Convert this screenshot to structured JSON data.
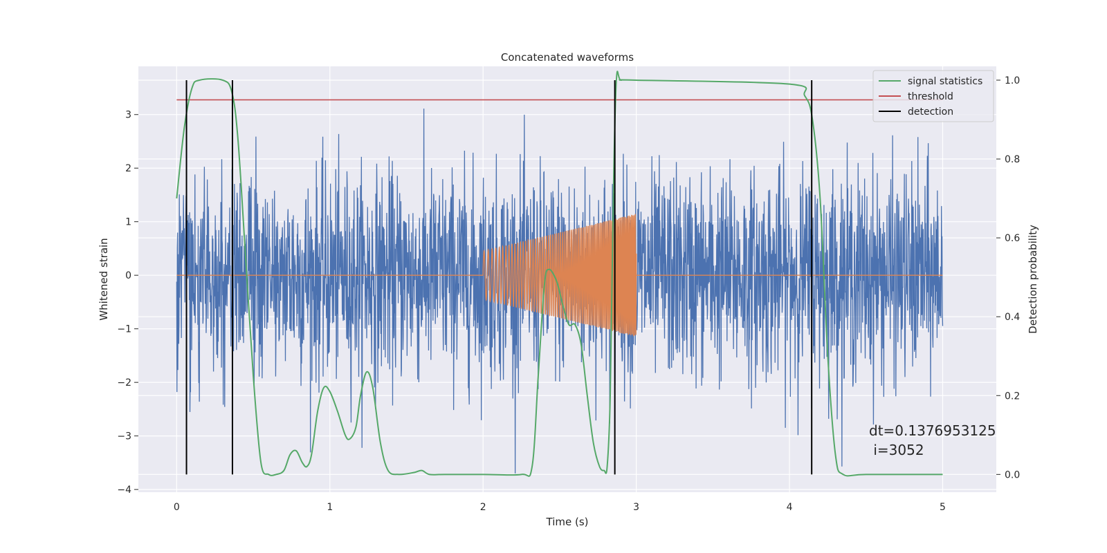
{
  "chart_data": {
    "type": "line",
    "title": "Concatenated waveforms",
    "xlabel": "Time (s)",
    "ylabel": "Whitened strain",
    "y2label": "Detection probability",
    "xlim": [
      -0.25,
      5.35
    ],
    "ylim": [
      -4.05,
      3.9
    ],
    "y2lim": [
      -0.045,
      1.035
    ],
    "xticks": [
      0,
      1,
      2,
      3,
      4,
      5
    ],
    "xtick_labels": [
      "0",
      "1",
      "2",
      "3",
      "4",
      "5"
    ],
    "yticks": [
      -4,
      -3,
      -2,
      -1,
      0,
      1,
      2,
      3
    ],
    "ytick_labels": [
      "−4",
      "−3",
      "−2",
      "−1",
      "0",
      "1",
      "2",
      "3"
    ],
    "y2ticks": [
      0.0,
      0.2,
      0.4,
      0.6,
      0.8,
      1.0
    ],
    "y2tick_labels": [
      "0.0",
      "0.2",
      "0.4",
      "0.6",
      "0.8",
      "1.0"
    ],
    "grid": true,
    "legend_position": "top-right",
    "colors": {
      "background": "#eaeaf2",
      "grid": "#ffffff",
      "strain": "#4c72b0",
      "template": "#dd8452",
      "signal_statistics": "#55a868",
      "threshold": "#c44e52",
      "detection": "#000000"
    },
    "series": [
      {
        "name": "",
        "axis": "left",
        "description_kind": "noise",
        "x_range": [
          0,
          5
        ],
        "approx_band": [
          -1.0,
          1.0
        ],
        "peak_range": [
          -3.7,
          3.55
        ]
      },
      {
        "name": "",
        "axis": "left",
        "description_kind": "chirp",
        "x_range": [
          2.0,
          3.0
        ],
        "amplitude_start": 0.45,
        "amplitude_end": 1.15
      },
      {
        "name": "signal statistics",
        "axis": "right",
        "x": [
          0,
          0.05,
          0.1,
          0.15,
          0.3,
          0.36,
          0.4,
          0.45,
          0.5,
          0.55,
          0.6,
          0.65,
          0.7,
          0.74,
          0.78,
          0.82,
          0.85,
          0.88,
          0.92,
          0.96,
          1.0,
          1.05,
          1.1,
          1.13,
          1.17,
          1.2,
          1.24,
          1.28,
          1.33,
          1.38,
          1.45,
          1.55,
          1.6,
          1.65,
          1.75,
          2.0,
          2.25,
          2.32,
          2.36,
          2.4,
          2.43,
          2.48,
          2.52,
          2.56,
          2.6,
          2.64,
          2.68,
          2.72,
          2.76,
          2.79,
          2.81,
          2.83,
          2.85,
          2.87,
          2.9,
          3.0,
          4.0,
          4.1,
          4.15,
          4.2,
          4.25,
          4.3,
          4.35,
          4.5,
          5.0
        ],
        "values": [
          0.7,
          0.88,
          0.98,
          1.0,
          1.0,
          0.97,
          0.85,
          0.55,
          0.25,
          0.03,
          0.0,
          0.0,
          0.01,
          0.05,
          0.06,
          0.03,
          0.02,
          0.05,
          0.16,
          0.22,
          0.21,
          0.16,
          0.1,
          0.09,
          0.12,
          0.2,
          0.26,
          0.22,
          0.08,
          0.01,
          0.0,
          0.005,
          0.01,
          0.0,
          0.0,
          0.0,
          0.0,
          0.02,
          0.25,
          0.48,
          0.52,
          0.49,
          0.43,
          0.38,
          0.38,
          0.33,
          0.2,
          0.08,
          0.02,
          0.01,
          0.02,
          0.2,
          0.7,
          1.0,
          1.0,
          1.0,
          0.99,
          0.96,
          0.9,
          0.7,
          0.3,
          0.05,
          0.0,
          0.0,
          0.0
        ]
      },
      {
        "name": "threshold",
        "axis": "right",
        "x": [
          0,
          5
        ],
        "values": [
          0.95,
          0.95
        ]
      },
      {
        "name": "detection",
        "axis": "right",
        "kind": "vertical_lines",
        "x": [
          0.064,
          0.364,
          2.86,
          4.145
        ],
        "span": [
          0.0,
          1.0
        ]
      }
    ],
    "legend": [
      {
        "label": "signal statistics",
        "color": "#55a868"
      },
      {
        "label": "threshold",
        "color": "#c44e52"
      },
      {
        "label": "detection",
        "color": "#000000"
      }
    ],
    "annotation": {
      "line1": "dt=0.1376953125",
      "line2": " i=3052",
      "x": 4.5,
      "y": -3.0
    }
  }
}
